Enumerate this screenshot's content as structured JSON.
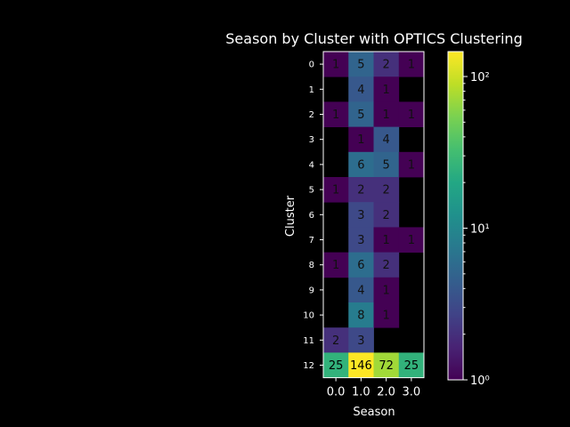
{
  "chart_data": {
    "type": "heatmap",
    "title": "Season by Cluster with OPTICS Clustering",
    "xlabel": "Season",
    "ylabel": "Cluster",
    "x_categories": [
      "0.0",
      "1.0",
      "2.0",
      "3.0"
    ],
    "y_categories": [
      "0",
      "1",
      "2",
      "3",
      "4",
      "5",
      "6",
      "7",
      "8",
      "9",
      "10",
      "11",
      "12"
    ],
    "values": [
      [
        1,
        5,
        2,
        1
      ],
      [
        null,
        4,
        1,
        null
      ],
      [
        1,
        5,
        1,
        1
      ],
      [
        null,
        1,
        4,
        null
      ],
      [
        null,
        6,
        5,
        1
      ],
      [
        1,
        2,
        2,
        null
      ],
      [
        null,
        3,
        2,
        null
      ],
      [
        null,
        3,
        1,
        1
      ],
      [
        1,
        6,
        2,
        null
      ],
      [
        null,
        4,
        1,
        null
      ],
      [
        null,
        8,
        1,
        null
      ],
      [
        2,
        3,
        null,
        null
      ],
      [
        25,
        146,
        72,
        25
      ]
    ],
    "colorscale": "viridis",
    "color_scale_type": "log",
    "color_range": [
      1,
      146
    ],
    "colorbar_ticks": [
      {
        "value": 1,
        "label": "10⁰"
      },
      {
        "value": 10,
        "label": "10¹"
      },
      {
        "value": 100,
        "label": "10²"
      }
    ],
    "background": "#000000",
    "foreground": "#ffffff"
  }
}
